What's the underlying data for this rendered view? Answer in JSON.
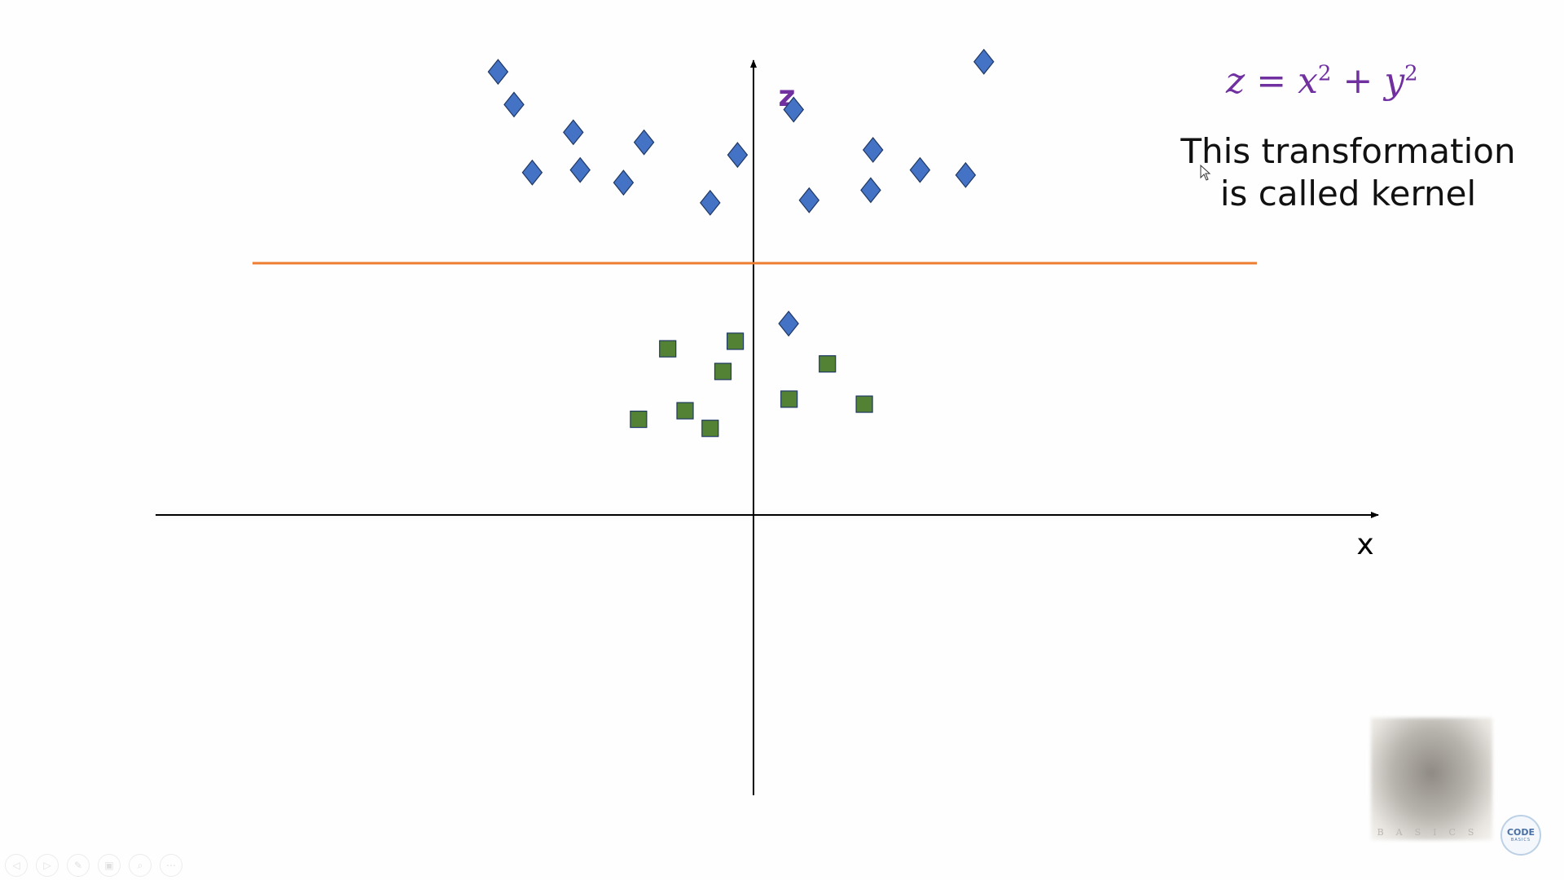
{
  "formula": {
    "lhs": "z",
    "eq": "=",
    "x": "x",
    "plus": "+",
    "y": "y",
    "exp": "2"
  },
  "caption": "This transformation is called kernel",
  "chart_data": {
    "type": "scatter",
    "xlabel": "x",
    "ylabel": "z",
    "series": [
      {
        "marker": "diamond",
        "color": "#4472c4",
        "points": [
          [
            -5.6,
            8.8
          ],
          [
            -5.25,
            8.15
          ],
          [
            -4.85,
            6.8
          ],
          [
            -3.95,
            7.6
          ],
          [
            -3.8,
            6.85
          ],
          [
            -2.85,
            6.6
          ],
          [
            -2.4,
            7.4
          ],
          [
            -0.95,
            6.2
          ],
          [
            -0.35,
            7.15
          ],
          [
            0.88,
            8.05
          ],
          [
            2.62,
            7.25
          ],
          [
            2.57,
            6.45
          ],
          [
            3.65,
            6.85
          ],
          [
            4.65,
            6.75
          ],
          [
            5.05,
            9.0
          ],
          [
            1.22,
            6.25
          ],
          [
            0.77,
            3.8
          ]
        ]
      },
      {
        "marker": "square",
        "color": "#548235",
        "points": [
          [
            -1.88,
            3.3
          ],
          [
            -0.4,
            3.45
          ],
          [
            -0.67,
            2.85
          ],
          [
            1.62,
            3.0
          ],
          [
            -2.52,
            1.9
          ],
          [
            -1.5,
            2.07
          ],
          [
            -0.95,
            1.72
          ],
          [
            0.78,
            2.3
          ],
          [
            2.43,
            2.2
          ]
        ]
      }
    ],
    "separator": {
      "z": 5,
      "color": "#ed7d31"
    }
  },
  "toolbar": {
    "buttons": [
      {
        "name": "prev-slide-button",
        "icon": "◁"
      },
      {
        "name": "next-slide-button",
        "icon": "▷"
      },
      {
        "name": "pen-button",
        "icon": "✎"
      },
      {
        "name": "slides-button",
        "icon": "▣"
      },
      {
        "name": "zoom-button",
        "icon": "⌕"
      },
      {
        "name": "more-button",
        "icon": "⋯"
      }
    ]
  },
  "webcam": {
    "text": "BASICS"
  },
  "logo": {
    "line1": "CODE",
    "line2": "BASICS"
  }
}
